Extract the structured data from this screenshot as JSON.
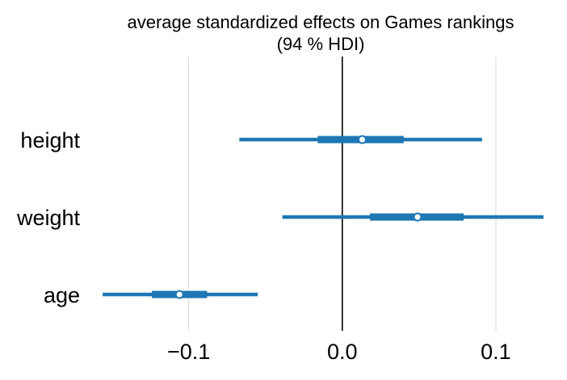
{
  "chart_data": {
    "type": "forest",
    "title_lines": [
      "average standardized effects on Games rankings",
      "(94 % HDI)"
    ],
    "xlabel": "",
    "ylabel": "",
    "xlim": [
      -0.165,
      0.14
    ],
    "xticks": [
      -0.1,
      0.0,
      0.1
    ],
    "xtick_labels": [
      "−0.1",
      "0.0",
      "0.1"
    ],
    "grid": "vertical",
    "reference_line": 0.0,
    "categories": [
      "height",
      "weight",
      "age"
    ],
    "rows": [
      {
        "category": "height",
        "mean": 0.013,
        "hdi_94": [
          -0.067,
          0.091
        ],
        "iqr": [
          -0.016,
          0.04
        ]
      },
      {
        "category": "weight",
        "mean": 0.049,
        "hdi_94": [
          -0.039,
          0.131
        ],
        "iqr": [
          0.018,
          0.079
        ]
      },
      {
        "category": "age",
        "mean": -0.106,
        "hdi_94": [
          -0.156,
          -0.055
        ],
        "iqr": [
          -0.124,
          -0.088
        ]
      }
    ],
    "colors": {
      "interval": "#1f77b4",
      "marker_fill": "#ffffff",
      "reference_line": "#000000",
      "grid": "#d9d9d9"
    }
  }
}
